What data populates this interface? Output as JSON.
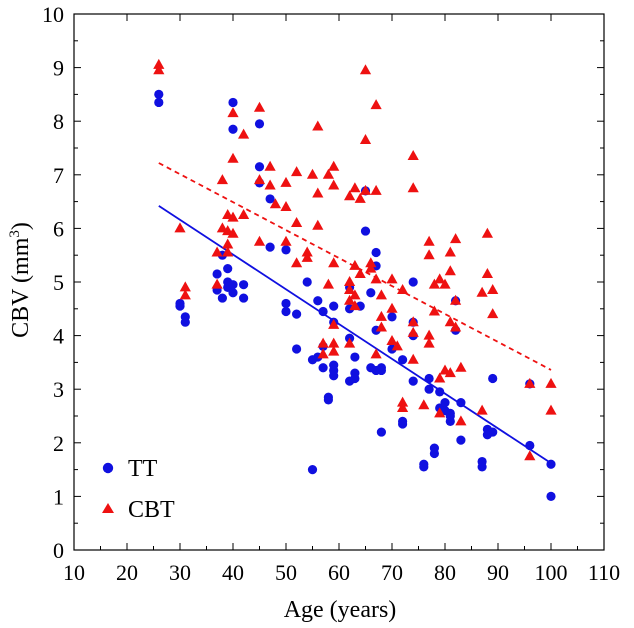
{
  "chart_data": {
    "type": "scatter",
    "title": "",
    "xlabel": "Age (years)",
    "ylabel_main": "CBV (mm",
    "ylabel_sup": "3",
    "ylabel_close": ")",
    "xlim": [
      10,
      110
    ],
    "ylim": [
      0,
      10
    ],
    "xticks": [
      10,
      20,
      30,
      40,
      50,
      60,
      70,
      80,
      90,
      100,
      110
    ],
    "yticks": [
      0,
      1,
      2,
      3,
      4,
      5,
      6,
      7,
      8,
      9,
      10
    ],
    "grid": false,
    "legend_position": "bottom-left",
    "colors": {
      "TT": "#1010e0",
      "CBT": "#ee1111"
    },
    "series": [
      {
        "name": "TT",
        "marker": "circle",
        "points": [
          [
            26,
            8.5
          ],
          [
            26,
            8.35
          ],
          [
            30,
            4.6
          ],
          [
            30,
            4.55
          ],
          [
            31,
            4.35
          ],
          [
            31,
            4.25
          ],
          [
            37,
            5.15
          ],
          [
            37,
            4.85
          ],
          [
            38,
            4.7
          ],
          [
            38,
            5.5
          ],
          [
            39,
            5.25
          ],
          [
            39,
            5.0
          ],
          [
            39,
            4.9
          ],
          [
            40,
            8.35
          ],
          [
            40,
            7.85
          ],
          [
            40,
            4.95
          ],
          [
            40,
            4.8
          ],
          [
            42,
            4.95
          ],
          [
            42,
            4.7
          ],
          [
            45,
            7.95
          ],
          [
            45,
            7.15
          ],
          [
            45,
            6.85
          ],
          [
            47,
            6.55
          ],
          [
            47,
            5.65
          ],
          [
            50,
            5.6
          ],
          [
            50,
            4.6
          ],
          [
            50,
            4.45
          ],
          [
            52,
            3.75
          ],
          [
            52,
            4.4
          ],
          [
            54,
            5.0
          ],
          [
            55,
            3.55
          ],
          [
            55,
            1.5
          ],
          [
            56,
            3.6
          ],
          [
            56,
            4.65
          ],
          [
            57,
            4.45
          ],
          [
            57,
            3.8
          ],
          [
            57,
            3.4
          ],
          [
            58,
            2.85
          ],
          [
            58,
            2.8
          ],
          [
            59,
            4.55
          ],
          [
            59,
            4.25
          ],
          [
            59,
            3.45
          ],
          [
            59,
            3.35
          ],
          [
            59,
            3.25
          ],
          [
            62,
            4.9
          ],
          [
            62,
            4.5
          ],
          [
            62,
            3.95
          ],
          [
            62,
            3.15
          ],
          [
            63,
            3.6
          ],
          [
            63,
            3.3
          ],
          [
            63,
            3.2
          ],
          [
            64,
            4.55
          ],
          [
            65,
            6.7
          ],
          [
            65,
            5.95
          ],
          [
            66,
            4.8
          ],
          [
            66,
            3.4
          ],
          [
            67,
            5.55
          ],
          [
            67,
            5.3
          ],
          [
            67,
            4.1
          ],
          [
            67,
            3.35
          ],
          [
            68,
            3.4
          ],
          [
            68,
            3.35
          ],
          [
            68,
            2.2
          ],
          [
            70,
            3.75
          ],
          [
            70,
            4.35
          ],
          [
            72,
            3.55
          ],
          [
            72,
            2.4
          ],
          [
            72,
            2.35
          ],
          [
            74,
            5.0
          ],
          [
            74,
            4.0
          ],
          [
            74,
            4.25
          ],
          [
            74,
            3.15
          ],
          [
            76,
            1.6
          ],
          [
            76,
            1.55
          ],
          [
            77,
            3.2
          ],
          [
            77,
            3.0
          ],
          [
            78,
            1.9
          ],
          [
            78,
            1.8
          ],
          [
            79,
            2.95
          ],
          [
            79,
            2.65
          ],
          [
            80,
            2.75
          ],
          [
            80,
            2.6
          ],
          [
            81,
            2.55
          ],
          [
            81,
            2.5
          ],
          [
            81,
            2.4
          ],
          [
            82,
            4.65
          ],
          [
            82,
            4.1
          ],
          [
            83,
            2.75
          ],
          [
            83,
            2.05
          ],
          [
            87,
            1.65
          ],
          [
            87,
            1.55
          ],
          [
            88,
            2.25
          ],
          [
            88,
            2.15
          ],
          [
            89,
            3.2
          ],
          [
            89,
            2.2
          ],
          [
            96,
            1.95
          ],
          [
            96,
            3.1
          ],
          [
            100,
            1.6
          ],
          [
            100,
            1.0
          ]
        ],
        "fit": {
          "x": [
            26,
            100
          ],
          "y": [
            6.42,
            1.62
          ],
          "style": "solid"
        }
      },
      {
        "name": "CBT",
        "marker": "triangle",
        "points": [
          [
            26,
            9.05
          ],
          [
            26,
            8.95
          ],
          [
            30,
            6.0
          ],
          [
            31,
            4.9
          ],
          [
            31,
            4.75
          ],
          [
            37,
            5.55
          ],
          [
            37,
            4.95
          ],
          [
            38,
            6.9
          ],
          [
            38,
            6.0
          ],
          [
            39,
            6.25
          ],
          [
            39,
            5.95
          ],
          [
            39,
            5.7
          ],
          [
            39,
            5.55
          ],
          [
            40,
            8.15
          ],
          [
            40,
            7.3
          ],
          [
            40,
            6.2
          ],
          [
            40,
            5.9
          ],
          [
            42,
            7.75
          ],
          [
            42,
            6.25
          ],
          [
            45,
            8.25
          ],
          [
            45,
            6.9
          ],
          [
            45,
            5.75
          ],
          [
            47,
            7.15
          ],
          [
            47,
            6.8
          ],
          [
            48,
            6.45
          ],
          [
            50,
            6.85
          ],
          [
            50,
            6.4
          ],
          [
            50,
            5.75
          ],
          [
            52,
            7.05
          ],
          [
            52,
            6.1
          ],
          [
            52,
            5.35
          ],
          [
            54,
            5.55
          ],
          [
            54,
            5.45
          ],
          [
            55,
            7.0
          ],
          [
            56,
            7.9
          ],
          [
            56,
            6.65
          ],
          [
            56,
            6.05
          ],
          [
            57,
            3.85
          ],
          [
            57,
            3.65
          ],
          [
            58,
            4.95
          ],
          [
            58,
            7.0
          ],
          [
            59,
            7.15
          ],
          [
            59,
            6.8
          ],
          [
            59,
            5.35
          ],
          [
            59,
            4.2
          ],
          [
            59,
            3.85
          ],
          [
            59,
            3.7
          ],
          [
            62,
            6.6
          ],
          [
            62,
            5.0
          ],
          [
            62,
            4.85
          ],
          [
            62,
            4.65
          ],
          [
            62,
            3.85
          ],
          [
            63,
            6.75
          ],
          [
            63,
            4.75
          ],
          [
            63,
            4.55
          ],
          [
            63,
            5.3
          ],
          [
            64,
            6.55
          ],
          [
            64,
            5.15
          ],
          [
            65,
            8.95
          ],
          [
            65,
            7.65
          ],
          [
            65,
            6.7
          ],
          [
            66,
            5.35
          ],
          [
            66,
            5.25
          ],
          [
            67,
            8.3
          ],
          [
            67,
            6.7
          ],
          [
            67,
            5.05
          ],
          [
            67,
            3.65
          ],
          [
            68,
            4.75
          ],
          [
            68,
            4.35
          ],
          [
            68,
            4.15
          ],
          [
            70,
            5.05
          ],
          [
            70,
            4.5
          ],
          [
            70,
            3.9
          ],
          [
            71,
            3.8
          ],
          [
            72,
            4.85
          ],
          [
            72,
            2.75
          ],
          [
            72,
            2.65
          ],
          [
            74,
            7.35
          ],
          [
            74,
            6.75
          ],
          [
            74,
            4.25
          ],
          [
            74,
            4.05
          ],
          [
            74,
            3.55
          ],
          [
            76,
            2.7
          ],
          [
            77,
            5.75
          ],
          [
            77,
            5.5
          ],
          [
            77,
            4.0
          ],
          [
            77,
            3.85
          ],
          [
            78,
            4.45
          ],
          [
            78,
            4.95
          ],
          [
            79,
            5.05
          ],
          [
            79,
            3.2
          ],
          [
            79,
            2.55
          ],
          [
            80,
            4.95
          ],
          [
            80,
            3.35
          ],
          [
            81,
            5.55
          ],
          [
            81,
            5.2
          ],
          [
            81,
            4.25
          ],
          [
            81,
            3.3
          ],
          [
            82,
            5.8
          ],
          [
            82,
            4.65
          ],
          [
            82,
            4.15
          ],
          [
            83,
            3.4
          ],
          [
            83,
            2.4
          ],
          [
            87,
            4.8
          ],
          [
            87,
            2.6
          ],
          [
            88,
            5.9
          ],
          [
            88,
            5.15
          ],
          [
            89,
            4.85
          ],
          [
            89,
            4.4
          ],
          [
            96,
            3.1
          ],
          [
            96,
            1.75
          ],
          [
            100,
            3.1
          ],
          [
            100,
            2.6
          ]
        ],
        "fit": {
          "x": [
            26,
            100
          ],
          "y": [
            7.22,
            3.36
          ],
          "style": "dashed"
        }
      }
    ]
  }
}
